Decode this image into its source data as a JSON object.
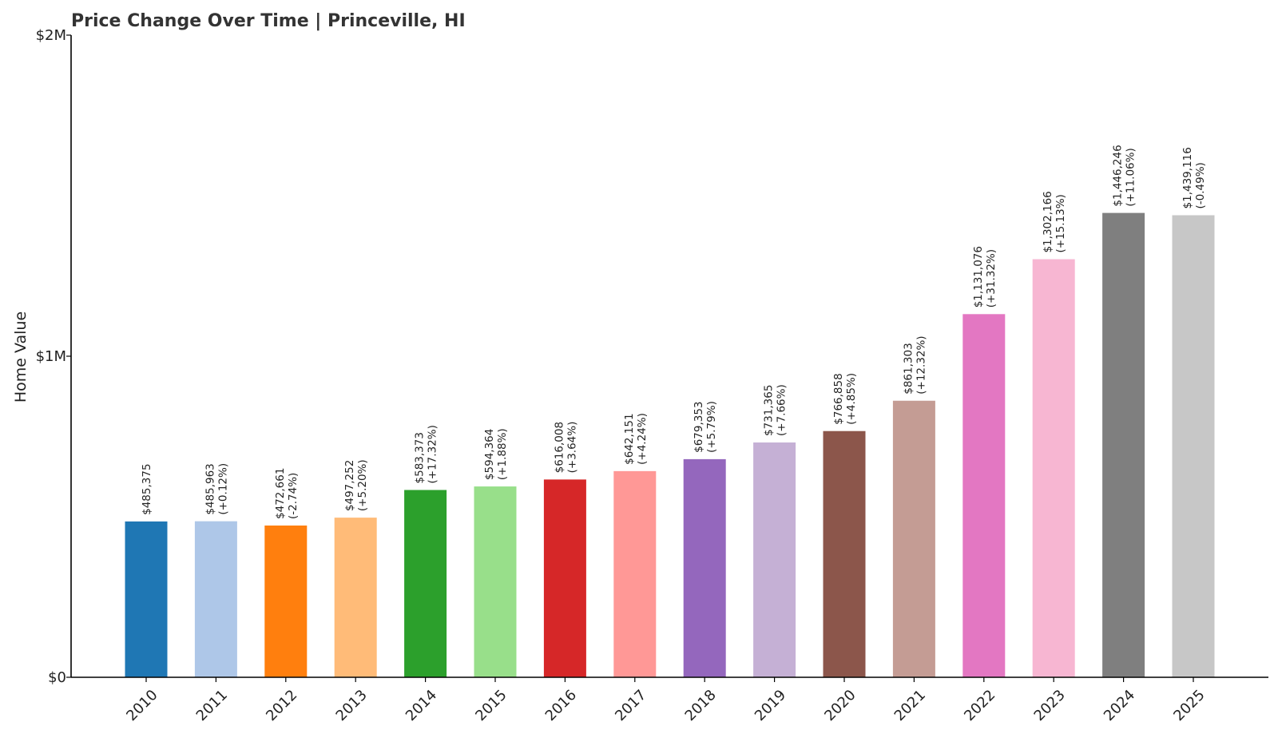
{
  "chart_data": {
    "type": "bar",
    "title": "Price Change Over Time | Princeville, HI",
    "xlabel": "",
    "ylabel": "Home Value",
    "ylim": [
      0,
      2000000
    ],
    "yticks": [
      {
        "value": 0,
        "label": "$0"
      },
      {
        "value": 1000000,
        "label": "$1M"
      },
      {
        "value": 2000000,
        "label": "$2M"
      }
    ],
    "grid": false,
    "categories": [
      "2010",
      "2011",
      "2012",
      "2013",
      "2014",
      "2015",
      "2016",
      "2017",
      "2018",
      "2019",
      "2020",
      "2021",
      "2022",
      "2023",
      "2024",
      "2025"
    ],
    "values": [
      485375,
      485963,
      472661,
      497252,
      583373,
      594364,
      616008,
      642151,
      679353,
      731365,
      766858,
      861303,
      1131076,
      1302166,
      1446246,
      1439116
    ],
    "value_labels": [
      "$485,375",
      "$485,963",
      "$472,661",
      "$497,252",
      "$583,373",
      "$594,364",
      "$616,008",
      "$642,151",
      "$679,353",
      "$731,365",
      "$766,858",
      "$861,303",
      "$1,131,076",
      "$1,302,166",
      "$1,446,246",
      "$1,439,116"
    ],
    "change_labels": [
      "",
      "(+0.12%)",
      "(-2.74%)",
      "(+5.20%)",
      "(+17.32%)",
      "(+1.88%)",
      "(+3.64%)",
      "(+4.24%)",
      "(+5.79%)",
      "(+7.66%)",
      "(+4.85%)",
      "(+12.32%)",
      "(+31.32%)",
      "(+15.13%)",
      "(+11.06%)",
      "(-0.49%)"
    ],
    "colors": [
      "#1f77b4",
      "#aec7e8",
      "#ff7f0e",
      "#ffbb78",
      "#2ca02c",
      "#98df8a",
      "#d62728",
      "#ff9896",
      "#9467bd",
      "#c5b0d5",
      "#8c564b",
      "#c49c94",
      "#e377c2",
      "#f7b6d2",
      "#7f7f7f",
      "#c7c7c7"
    ]
  }
}
